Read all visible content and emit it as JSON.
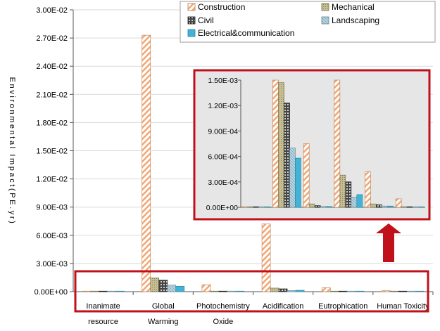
{
  "chart_data": [
    {
      "type": "bar",
      "title": "",
      "xlabel": "",
      "ylabel": "Environmental Impact(PE.yr)",
      "ylim": [
        0,
        0.03
      ],
      "yticks": [
        "0.00E+00",
        "3.00E-03",
        "6.00E-03",
        "9.00E-03",
        "1.20E-02",
        "1.50E-02",
        "1.80E-02",
        "2.10E-02",
        "2.40E-02",
        "2.70E-02",
        "3.00E-02"
      ],
      "categories": [
        [
          "Inanimate",
          "resource"
        ],
        [
          "Global",
          "Warming"
        ],
        [
          "Photochemistry",
          "Oxide"
        ],
        [
          "Acidification"
        ],
        [
          "Eutrophication"
        ],
        [
          "Human Toxicity"
        ]
      ],
      "grid": true,
      "legend": "top-right",
      "series": [
        {
          "name": "Construction",
          "values": [
            2e-06,
            0.0273,
            0.00074,
            0.0072,
            0.00042,
            0.0001
          ]
        },
        {
          "name": "Mechanical",
          "values": [
            1e-06,
            0.00147,
            4e-05,
            0.00038,
            4e-05,
            5e-06
          ]
        },
        {
          "name": "Civil",
          "values": [
            1e-06,
            0.00123,
            2e-05,
            0.0003,
            3e-05,
            5e-06
          ]
        },
        {
          "name": "Landscaping",
          "values": [
            1e-06,
            0.0007,
            1e-05,
            0.00012,
            1.5e-05,
            3e-06
          ]
        },
        {
          "name": "Electrical&communication",
          "values": [
            1e-06,
            0.00058,
            1e-05,
            0.00015,
            1.5e-05,
            3e-06
          ]
        }
      ]
    },
    {
      "type": "bar",
      "title": "",
      "ylim": [
        0,
        0.0015
      ],
      "yticks": [
        "0.00E+00",
        "3.00E-04",
        "6.00E-04",
        "9.00E-04",
        "1.20E-03",
        "1.50E-03"
      ],
      "series": [
        {
          "name": "Construction",
          "values": [
            5e-06,
            0.0015,
            0.00075,
            0.0015,
            0.00042,
            0.0001
          ]
        },
        {
          "name": "Mechanical",
          "values": [
            3e-06,
            0.00147,
            4e-05,
            0.00038,
            4e-05,
            5e-06
          ]
        },
        {
          "name": "Civil",
          "values": [
            3e-06,
            0.00123,
            2e-05,
            0.0003,
            3e-05,
            5e-06
          ]
        },
        {
          "name": "Landscaping",
          "values": [
            3e-06,
            0.0007,
            1e-05,
            0.00012,
            1.5e-05,
            3e-06
          ]
        },
        {
          "name": "Electrical&communication",
          "values": [
            3e-06,
            0.00058,
            1e-05,
            0.00015,
            1.5e-05,
            3e-06
          ]
        }
      ]
    }
  ],
  "colors": {
    "construction": "#f2a671",
    "mechanical": "#c6be8e",
    "civil": "#333333",
    "landscaping": "#b9d5e1",
    "electrical": "#41b4d6",
    "highlight": "#c0101a",
    "inset_bg": "#e6e6e6"
  }
}
